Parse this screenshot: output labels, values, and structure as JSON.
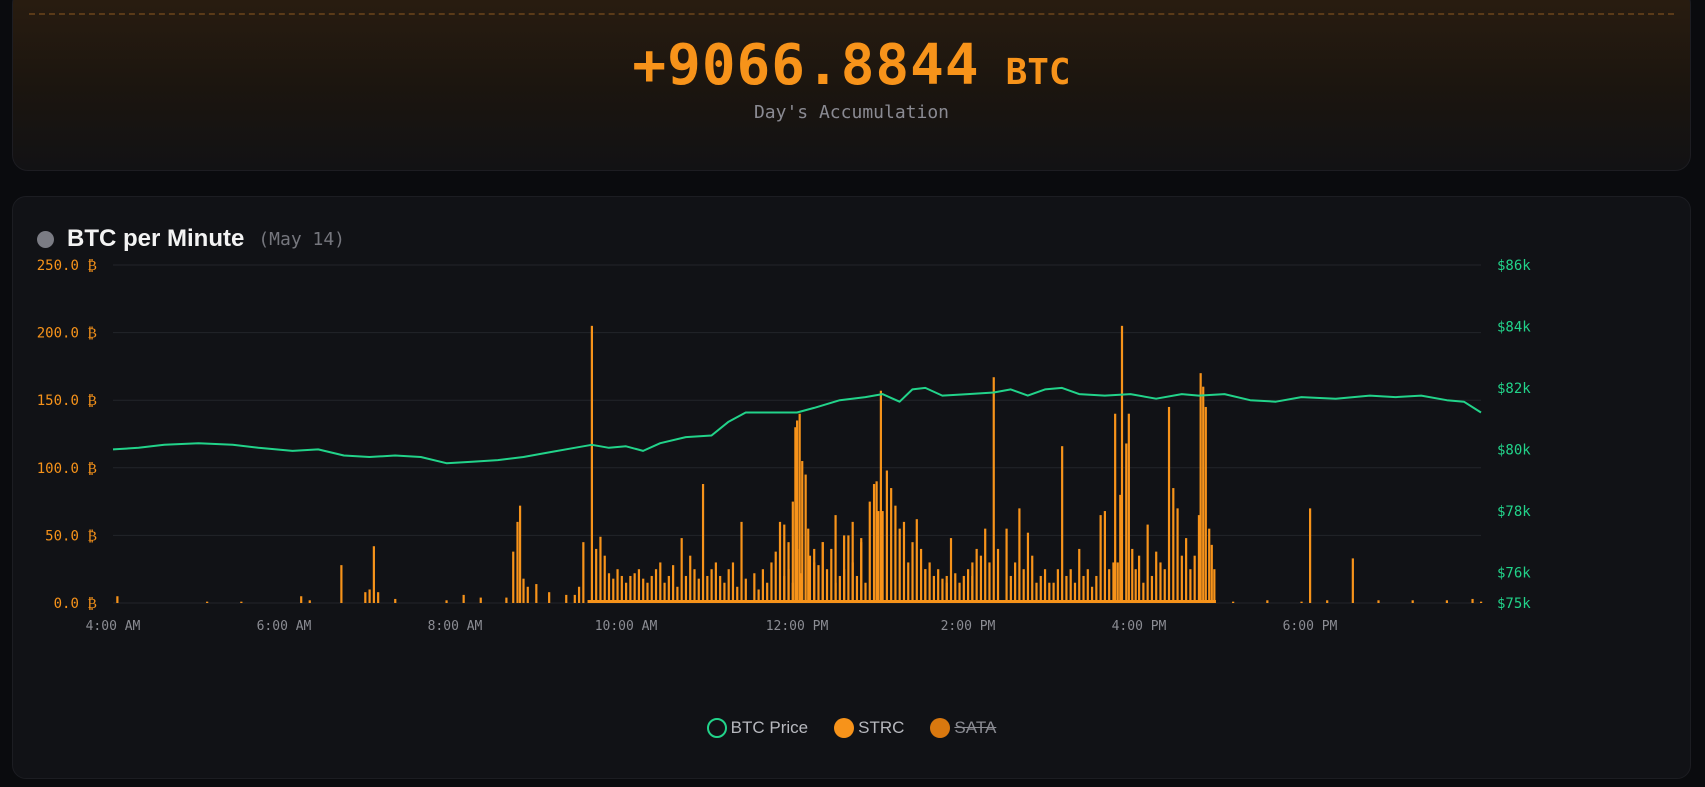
{
  "summary": {
    "value": "+9066.8844",
    "unit": "BTC",
    "caption": "Day's Accumulation"
  },
  "chart_panel": {
    "title": "BTC per Minute",
    "date": "(May 14)",
    "legend": [
      {
        "label": "BTC Price",
        "color": "#22d38a",
        "style": "outline",
        "hidden": false
      },
      {
        "label": "STRC",
        "color": "#f7931a",
        "style": "filled",
        "hidden": false
      },
      {
        "label": "SATA",
        "color": "#d9780f",
        "style": "filled",
        "hidden": true
      }
    ]
  },
  "chart_data": {
    "type": "bar",
    "title": "BTC per Minute",
    "x_range": [
      "4:00 AM",
      "8:00 PM"
    ],
    "x_ticks": [
      "4:00 AM",
      "6:00 AM",
      "8:00 AM",
      "10:00 AM",
      "12:00 PM",
      "2:00 PM",
      "4:00 PM",
      "6:00 PM"
    ],
    "y_left": {
      "ticks": [
        "250.0 ₿",
        "200.0 ₿",
        "150.0 ₿",
        "100.0 ₿",
        "50.0 ₿",
        "0.0 ₿"
      ],
      "range": [
        0,
        250
      ],
      "color": "#f7931a"
    },
    "y_right": {
      "ticks": [
        "$86k",
        "$84k",
        "$82k",
        "$80k",
        "$78k",
        "$76k",
        "$75k"
      ],
      "range": [
        75,
        86
      ],
      "color": "#22d38a"
    },
    "grid": true,
    "legend_position": "bottom",
    "series": [
      {
        "name": "STRC",
        "type": "bar",
        "color": "#f7931a",
        "points": [
          [
            4.05,
            5
          ],
          [
            5.1,
            1
          ],
          [
            5.5,
            1
          ],
          [
            6.2,
            5
          ],
          [
            6.3,
            2
          ],
          [
            6.67,
            28
          ],
          [
            6.95,
            8
          ],
          [
            7.0,
            10
          ],
          [
            7.05,
            42
          ],
          [
            7.1,
            8
          ],
          [
            7.3,
            3
          ],
          [
            7.9,
            2
          ],
          [
            8.1,
            6
          ],
          [
            8.3,
            4
          ],
          [
            8.6,
            4
          ],
          [
            8.68,
            38
          ],
          [
            8.73,
            60
          ],
          [
            8.76,
            72
          ],
          [
            8.8,
            18
          ],
          [
            8.85,
            12
          ],
          [
            8.95,
            14
          ],
          [
            9.1,
            8
          ],
          [
            9.3,
            6
          ],
          [
            9.4,
            6
          ],
          [
            9.45,
            12
          ],
          [
            9.5,
            45
          ],
          [
            9.6,
            205
          ],
          [
            9.65,
            40
          ],
          [
            9.7,
            49
          ],
          [
            9.75,
            35
          ],
          [
            9.8,
            22
          ],
          [
            9.85,
            18
          ],
          [
            9.9,
            25
          ],
          [
            9.95,
            20
          ],
          [
            10.0,
            15
          ],
          [
            10.05,
            20
          ],
          [
            10.1,
            22
          ],
          [
            10.15,
            25
          ],
          [
            10.2,
            18
          ],
          [
            10.25,
            15
          ],
          [
            10.3,
            20
          ],
          [
            10.35,
            25
          ],
          [
            10.4,
            30
          ],
          [
            10.45,
            15
          ],
          [
            10.5,
            20
          ],
          [
            10.55,
            28
          ],
          [
            10.6,
            12
          ],
          [
            10.65,
            48
          ],
          [
            10.7,
            20
          ],
          [
            10.75,
            35
          ],
          [
            10.8,
            25
          ],
          [
            10.85,
            18
          ],
          [
            10.9,
            88
          ],
          [
            10.95,
            20
          ],
          [
            11.0,
            25
          ],
          [
            11.05,
            30
          ],
          [
            11.1,
            20
          ],
          [
            11.15,
            15
          ],
          [
            11.2,
            25
          ],
          [
            11.25,
            30
          ],
          [
            11.3,
            12
          ],
          [
            11.35,
            60
          ],
          [
            11.4,
            18
          ],
          [
            11.5,
            22
          ],
          [
            11.55,
            10
          ],
          [
            11.6,
            25
          ],
          [
            11.65,
            15
          ],
          [
            11.7,
            30
          ],
          [
            11.75,
            38
          ],
          [
            11.8,
            60
          ],
          [
            11.85,
            20
          ],
          [
            11.9,
            25
          ],
          [
            11.95,
            15
          ],
          [
            12.0,
            40
          ],
          [
            12.05,
            22
          ],
          [
            12.15,
            35
          ],
          [
            12.2,
            30
          ],
          [
            12.25,
            28
          ],
          [
            12.3,
            45
          ],
          [
            12.35,
            25
          ],
          [
            12.4,
            40
          ],
          [
            12.45,
            15
          ],
          [
            12.5,
            20
          ],
          [
            12.55,
            25
          ],
          [
            12.6,
            50
          ],
          [
            12.65,
            30
          ],
          [
            12.7,
            20
          ],
          [
            12.75,
            45
          ],
          [
            12.8,
            15
          ],
          [
            11.85,
            58
          ],
          [
            11.9,
            45
          ],
          [
            11.95,
            75
          ],
          [
            11.98,
            130
          ],
          [
            12.0,
            135
          ],
          [
            12.03,
            140
          ],
          [
            12.06,
            105
          ],
          [
            12.1,
            95
          ],
          [
            12.13,
            55
          ],
          [
            12.2,
            40
          ],
          [
            12.3,
            45
          ],
          [
            12.45,
            65
          ],
          [
            12.55,
            50
          ],
          [
            12.65,
            60
          ],
          [
            12.75,
            48
          ],
          [
            12.85,
            75
          ],
          [
            12.9,
            88
          ],
          [
            12.93,
            90
          ],
          [
            12.95,
            68
          ],
          [
            12.98,
            157
          ],
          [
            13.0,
            68
          ],
          [
            13.05,
            98
          ],
          [
            13.1,
            85
          ],
          [
            13.15,
            72
          ],
          [
            13.2,
            55
          ],
          [
            13.25,
            60
          ],
          [
            13.3,
            30
          ],
          [
            13.35,
            45
          ],
          [
            13.4,
            62
          ],
          [
            13.45,
            40
          ],
          [
            13.5,
            25
          ],
          [
            13.55,
            30
          ],
          [
            13.6,
            20
          ],
          [
            13.65,
            25
          ],
          [
            13.7,
            18
          ],
          [
            13.75,
            20
          ],
          [
            13.8,
            48
          ],
          [
            13.85,
            22
          ],
          [
            13.9,
            15
          ],
          [
            13.95,
            20
          ],
          [
            14.0,
            25
          ],
          [
            14.05,
            20
          ],
          [
            13.5,
            25
          ],
          [
            13.75,
            15
          ],
          [
            14.05,
            30
          ],
          [
            14.1,
            40
          ],
          [
            14.15,
            35
          ],
          [
            14.2,
            55
          ],
          [
            14.25,
            30
          ],
          [
            14.3,
            167
          ],
          [
            14.35,
            40
          ],
          [
            14.45,
            55
          ],
          [
            14.5,
            20
          ],
          [
            14.55,
            30
          ],
          [
            14.6,
            70
          ],
          [
            14.65,
            25
          ],
          [
            14.7,
            52
          ],
          [
            14.75,
            35
          ],
          [
            14.8,
            15
          ],
          [
            14.85,
            20
          ],
          [
            14.9,
            25
          ],
          [
            14.95,
            15
          ],
          [
            15.0,
            15
          ],
          [
            15.05,
            25
          ],
          [
            15.1,
            116
          ],
          [
            15.15,
            20
          ],
          [
            15.2,
            25
          ],
          [
            15.25,
            15
          ],
          [
            15.3,
            40
          ],
          [
            15.35,
            20
          ],
          [
            15.4,
            25
          ],
          [
            15.45,
            12
          ],
          [
            15.5,
            20
          ],
          [
            15.55,
            65
          ],
          [
            15.6,
            68
          ],
          [
            15.65,
            25
          ],
          [
            15.7,
            30
          ],
          [
            15.72,
            140
          ],
          [
            15.75,
            30
          ],
          [
            15.78,
            80
          ],
          [
            15.8,
            205
          ],
          [
            15.85,
            118
          ],
          [
            15.88,
            140
          ],
          [
            15.92,
            40
          ],
          [
            15.96,
            25
          ],
          [
            16.0,
            35
          ],
          [
            16.05,
            15
          ],
          [
            16.1,
            58
          ],
          [
            16.15,
            20
          ],
          [
            16.2,
            38
          ],
          [
            16.25,
            30
          ],
          [
            16.3,
            25
          ],
          [
            16.35,
            145
          ],
          [
            16.4,
            85
          ],
          [
            16.45,
            70
          ],
          [
            16.5,
            35
          ],
          [
            16.55,
            48
          ],
          [
            16.6,
            25
          ],
          [
            16.65,
            35
          ],
          [
            16.7,
            65
          ],
          [
            16.72,
            170
          ],
          [
            16.75,
            160
          ],
          [
            16.78,
            145
          ],
          [
            16.82,
            55
          ],
          [
            16.85,
            43
          ],
          [
            16.88,
            25
          ],
          [
            17.1,
            1
          ],
          [
            17.5,
            2
          ],
          [
            17.9,
            1
          ],
          [
            18.0,
            70
          ],
          [
            18.2,
            2
          ],
          [
            18.5,
            33
          ],
          [
            18.8,
            2
          ],
          [
            19.2,
            2
          ],
          [
            19.6,
            2
          ],
          [
            19.9,
            3
          ],
          [
            20.0,
            1
          ]
        ]
      },
      {
        "name": "BTC Price",
        "type": "line",
        "color": "#22d38a",
        "points": [
          [
            4.0,
            80.0
          ],
          [
            4.3,
            80.05
          ],
          [
            4.6,
            80.15
          ],
          [
            5.0,
            80.2
          ],
          [
            5.4,
            80.15
          ],
          [
            5.7,
            80.05
          ],
          [
            6.1,
            79.95
          ],
          [
            6.4,
            80.0
          ],
          [
            6.7,
            79.8
          ],
          [
            7.0,
            79.75
          ],
          [
            7.3,
            79.8
          ],
          [
            7.6,
            79.75
          ],
          [
            7.9,
            79.55
          ],
          [
            8.2,
            79.6
          ],
          [
            8.5,
            79.65
          ],
          [
            8.8,
            79.75
          ],
          [
            9.1,
            79.9
          ],
          [
            9.4,
            80.05
          ],
          [
            9.6,
            80.15
          ],
          [
            9.8,
            80.05
          ],
          [
            10.0,
            80.1
          ],
          [
            10.2,
            79.95
          ],
          [
            10.4,
            80.2
          ],
          [
            10.7,
            80.4
          ],
          [
            11.0,
            80.45
          ],
          [
            11.2,
            80.9
          ],
          [
            11.4,
            81.2
          ],
          [
            11.7,
            81.2
          ],
          [
            12.0,
            81.2
          ],
          [
            12.2,
            81.35
          ],
          [
            12.5,
            81.6
          ],
          [
            12.8,
            81.7
          ],
          [
            13.0,
            81.8
          ],
          [
            13.2,
            81.55
          ],
          [
            13.35,
            81.95
          ],
          [
            13.5,
            82.0
          ],
          [
            13.7,
            81.75
          ],
          [
            14.0,
            81.8
          ],
          [
            14.3,
            81.85
          ],
          [
            14.5,
            81.95
          ],
          [
            14.7,
            81.75
          ],
          [
            14.9,
            81.95
          ],
          [
            15.1,
            82.0
          ],
          [
            15.3,
            81.8
          ],
          [
            15.6,
            81.75
          ],
          [
            15.9,
            81.8
          ],
          [
            16.2,
            81.65
          ],
          [
            16.5,
            81.8
          ],
          [
            16.7,
            81.75
          ],
          [
            17.0,
            81.8
          ],
          [
            17.3,
            81.6
          ],
          [
            17.6,
            81.55
          ],
          [
            17.9,
            81.7
          ],
          [
            18.3,
            81.65
          ],
          [
            18.7,
            81.75
          ],
          [
            19.0,
            81.7
          ],
          [
            19.3,
            81.75
          ],
          [
            19.6,
            81.6
          ],
          [
            19.8,
            81.55
          ],
          [
            20.0,
            81.2
          ]
        ]
      },
      {
        "name": "SATA",
        "type": "bar",
        "color": "#d9780f",
        "hidden": true,
        "points": []
      }
    ]
  }
}
